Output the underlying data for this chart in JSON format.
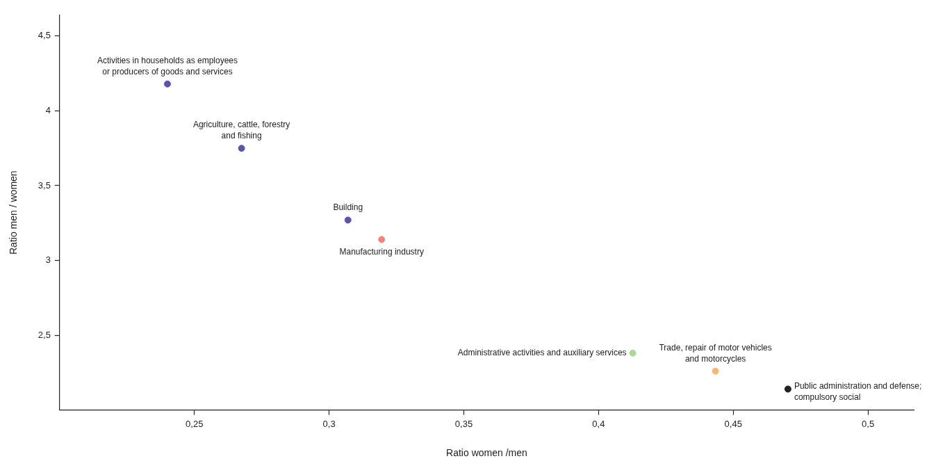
{
  "chart_data": {
    "type": "scatter",
    "xlabel": "Ratio women /men",
    "ylabel": "Ratio men / women",
    "xlim": [
      0.2,
      0.517
    ],
    "ylim": [
      2,
      4.64
    ],
    "xticks": [
      {
        "value": 0.25,
        "label": "0,25"
      },
      {
        "value": 0.3,
        "label": "0,3"
      },
      {
        "value": 0.35,
        "label": "0,35"
      },
      {
        "value": 0.4,
        "label": "0,4"
      },
      {
        "value": 0.45,
        "label": "0,45"
      },
      {
        "value": 0.5,
        "label": "0,5"
      }
    ],
    "yticks": [
      {
        "value": 2.5,
        "label": "2,5"
      },
      3,
      {
        "value": 3.5,
        "label": "3,5"
      },
      4,
      {
        "value": 4.5,
        "label": "4,5"
      }
    ],
    "grid": false,
    "legend": false,
    "marker": "circle",
    "series": [
      {
        "x": [
          0.24,
          0.2675,
          0.307,
          0.3195,
          0.4127,
          0.4434,
          0.4703
        ],
        "values": [
          4.18,
          3.75,
          3.27,
          3.14,
          2.38,
          2.26,
          2.14
        ],
        "colors": [
          "#5b55a8",
          "#5b55a8",
          "#5b55a8",
          "#f0857a",
          "#a8d89a",
          "#f5b870",
          "#222222"
        ]
      }
    ],
    "annotations": [
      {
        "text": "Activities in households as employees\nor producers of goods and services",
        "x": 0.24,
        "y": 4.18
      },
      {
        "text": "Agriculture, cattle, forestry\nand fishing",
        "x": 0.2675,
        "y": 3.75
      },
      {
        "text": "Building",
        "x": 0.307,
        "y": 3.27
      },
      {
        "text": "Manufacturing industry",
        "x": 0.3195,
        "y": 3.14
      },
      {
        "text": "Administrative activities and auxiliary services",
        "x": 0.4127,
        "y": 2.38
      },
      {
        "text": "Trade, repair of motor vehicles\nand motorcycles",
        "x": 0.4434,
        "y": 2.26
      },
      {
        "text": "Public administration and defense;\ncompulsory social",
        "x": 0.4703,
        "y": 2.14
      }
    ]
  }
}
